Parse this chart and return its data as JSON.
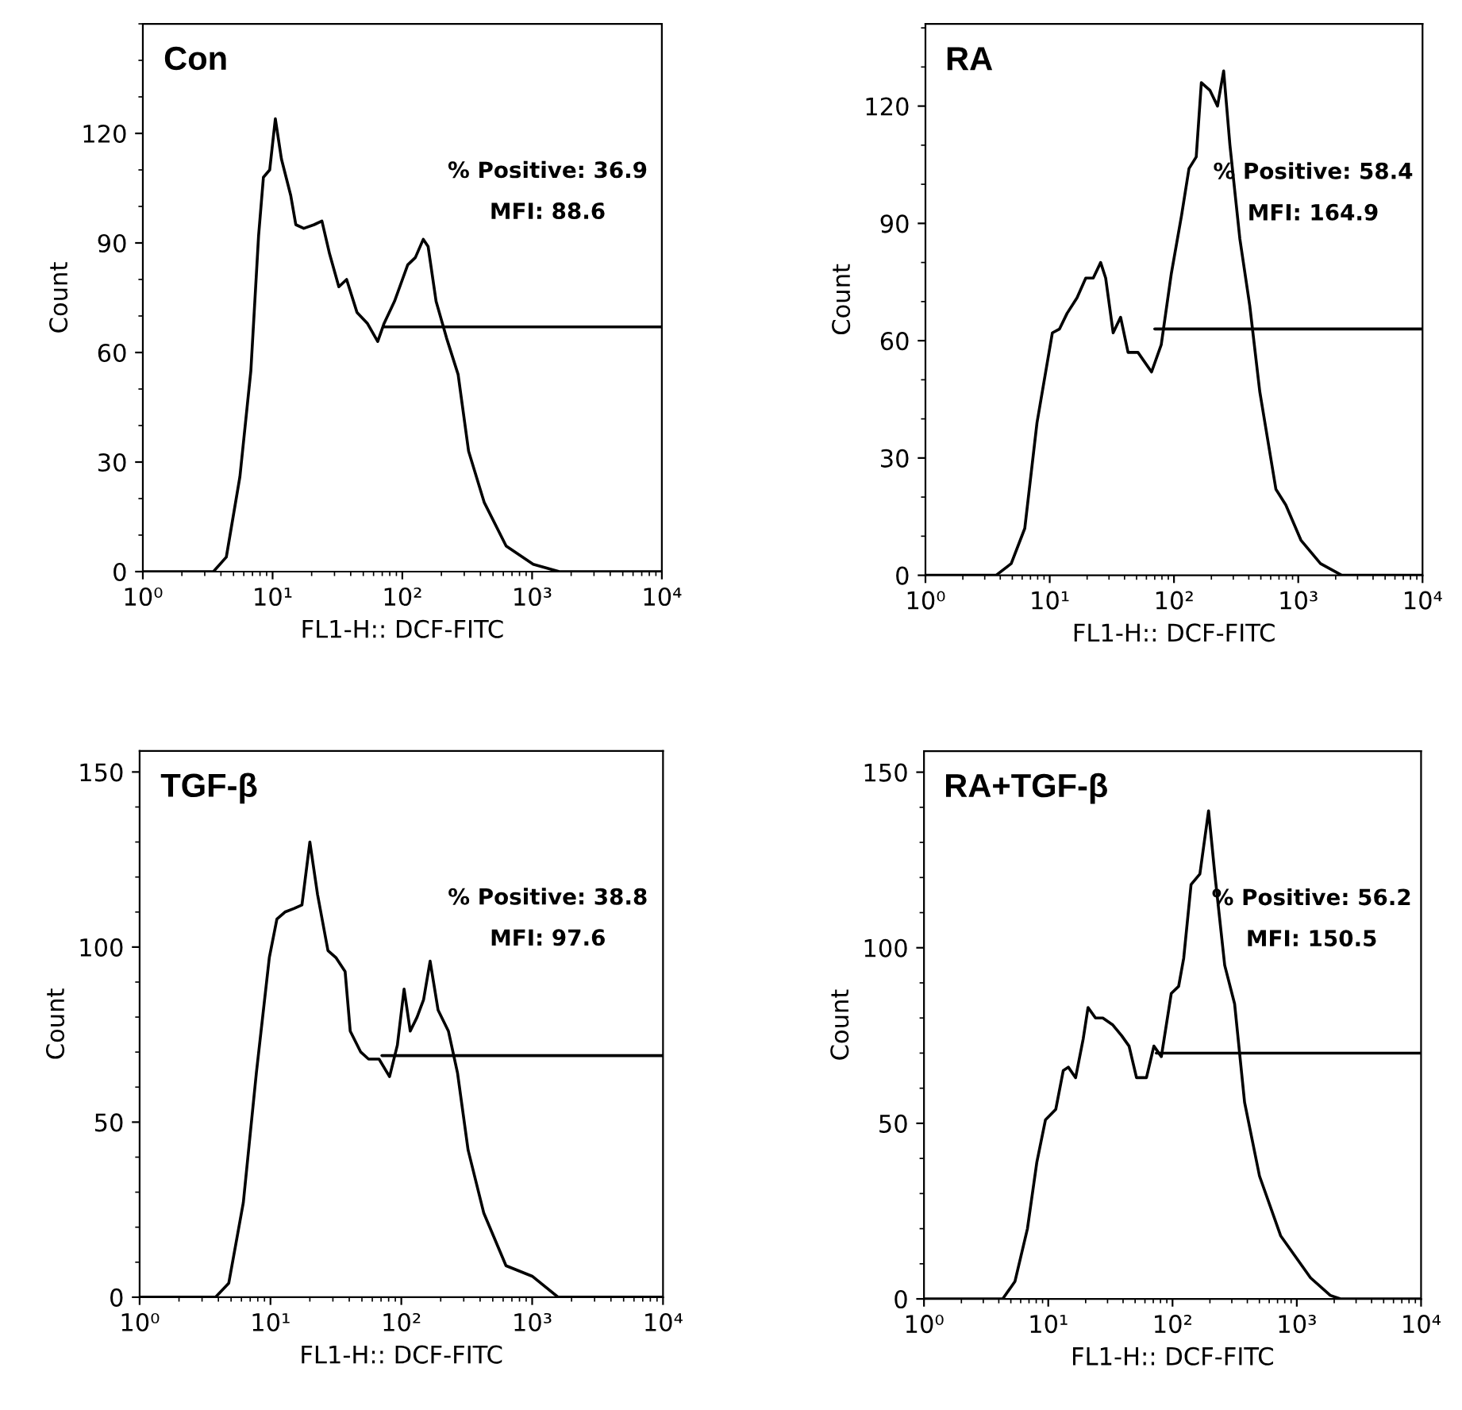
{
  "chart_data": [
    {
      "type": "line",
      "title": "Con",
      "xlabel": "FL1-H:: DCF-FITC",
      "ylabel": "Count",
      "log": "x",
      "grid": false,
      "xlim": [
        1,
        10000
      ],
      "ylim": [
        0,
        150
      ],
      "xticks": [
        {
          "value": 1,
          "label": "10⁰"
        },
        {
          "value": 10,
          "label": "10¹"
        },
        {
          "value": 100,
          "label": "10²"
        },
        {
          "value": 1000,
          "label": "10³"
        },
        {
          "value": 10000,
          "label": "10⁴"
        }
      ],
      "yticks": [
        0,
        30,
        60,
        90,
        120
      ],
      "annotations": [
        "% Positive: 36.9",
        "MFI: 88.6"
      ],
      "series": [
        {
          "color": "#000000",
          "x": [
            1,
            3.5,
            4.4,
            5.6,
            6.8,
            7.8,
            8.5,
            9.5,
            10.5,
            11.7,
            13.8,
            15.1,
            17.4,
            20.9,
            24,
            27.5,
            32.4,
            37.2,
            44.7,
            53.7,
            64.6,
            72.4,
            87,
            110,
            126,
            145,
            158,
            182,
            219,
            269,
            324,
            427,
            631,
            1020,
            1620,
            10000
          ],
          "values": [
            0,
            0,
            4,
            26,
            55,
            92,
            108,
            110,
            124,
            113,
            103,
            95,
            94,
            95,
            96,
            87,
            78,
            80,
            71,
            68,
            63,
            68,
            74,
            84,
            86,
            91,
            89,
            74,
            64,
            54,
            33,
            19,
            7,
            2,
            0,
            0
          ]
        },
        {
          "color": "#000000",
          "x": [
            72,
            10000
          ],
          "values": [
            67,
            67
          ]
        }
      ]
    },
    {
      "type": "line",
      "title": "RA",
      "xlabel": "FL1-H:: DCF-FITC",
      "ylabel": "Count",
      "log": "x",
      "grid": false,
      "xlim": [
        1,
        10000
      ],
      "ylim": [
        0,
        141
      ],
      "xticks": [
        {
          "value": 1,
          "label": "10⁰"
        },
        {
          "value": 10,
          "label": "10¹"
        },
        {
          "value": 100,
          "label": "10²"
        },
        {
          "value": 1000,
          "label": "10³"
        },
        {
          "value": 10000,
          "label": "10⁴"
        }
      ],
      "yticks": [
        0,
        30,
        60,
        90,
        120
      ],
      "annotations": [
        "% Positive: 58.4",
        "MFI: 164.9"
      ],
      "series": [
        {
          "color": "#000000",
          "x": [
            1,
            3.7,
            4.9,
            6.3,
            7.9,
            10.5,
            12,
            13.8,
            16.6,
            19.5,
            22.4,
            25.7,
            28.2,
            32.4,
            37.2,
            42.7,
            51.3,
            66,
            79,
            95,
            115,
            132,
            151,
            166,
            195,
            224,
            251,
            282,
            339,
            407,
            490,
            661,
            794,
            1050,
            1510,
            2240,
            10000
          ],
          "values": [
            0,
            0,
            3,
            12,
            39,
            62,
            63,
            67,
            71,
            76,
            76,
            80,
            76,
            62,
            66,
            57,
            57,
            52,
            59,
            77,
            92,
            104,
            107,
            126,
            124,
            120,
            129,
            110,
            86,
            69,
            47,
            22,
            18,
            9,
            3,
            0,
            0
          ]
        },
        {
          "color": "#000000",
          "x": [
            70,
            10000
          ],
          "values": [
            63,
            63
          ]
        }
      ]
    },
    {
      "type": "line",
      "title": "TGF-β",
      "xlabel": "FL1-H:: DCF-FITC",
      "ylabel": "Count",
      "log": "x",
      "grid": false,
      "xlim": [
        1,
        10000
      ],
      "ylim": [
        0,
        156
      ],
      "xticks": [
        {
          "value": 1,
          "label": "10⁰"
        },
        {
          "value": 10,
          "label": "10¹"
        },
        {
          "value": 100,
          "label": "10²"
        },
        {
          "value": 1000,
          "label": "10³"
        },
        {
          "value": 10000,
          "label": "10⁴"
        }
      ],
      "yticks": [
        0,
        50,
        100,
        150
      ],
      "annotations": [
        "% Positive: 38.8",
        "MFI: 97.6"
      ],
      "series": [
        {
          "color": "#000000",
          "x": [
            1,
            3.8,
            4.8,
            6.2,
            7.8,
            9.8,
            11.2,
            12.9,
            15.1,
            17.4,
            20,
            22.9,
            27.5,
            31.6,
            37.2,
            40.7,
            49,
            56.2,
            67.6,
            81.3,
            93.3,
            105,
            117,
            132,
            148,
            166,
            191,
            229,
            269,
            324,
            427,
            631,
            1000,
            1580,
            10000
          ],
          "values": [
            0,
            0,
            4,
            27,
            64,
            97,
            108,
            110,
            111,
            112,
            130,
            115,
            99,
            97,
            93,
            76,
            70,
            68,
            68,
            63,
            72,
            88,
            76,
            80,
            85,
            96,
            82,
            76,
            64,
            42,
            24,
            9,
            6,
            0,
            0
          ]
        },
        {
          "color": "#000000",
          "x": [
            71,
            10000
          ],
          "values": [
            69,
            69
          ]
        }
      ]
    },
    {
      "type": "line",
      "title": "RA+TGF-β",
      "xlabel": "FL1-H:: DCF-FITC",
      "ylabel": "Count",
      "log": "x",
      "grid": false,
      "xlim": [
        1,
        10000
      ],
      "ylim": [
        0,
        156
      ],
      "xticks": [
        {
          "value": 1,
          "label": "10⁰"
        },
        {
          "value": 10,
          "label": "10¹"
        },
        {
          "value": 100,
          "label": "10²"
        },
        {
          "value": 1000,
          "label": "10³"
        },
        {
          "value": 10000,
          "label": "10⁴"
        }
      ],
      "yticks": [
        0,
        50,
        100,
        150
      ],
      "annotations": [
        "% Positive: 56.2",
        "MFI: 150.5"
      ],
      "series": [
        {
          "color": "#000000",
          "x": [
            1,
            4.3,
            5.4,
            6.8,
            8.1,
            9.5,
            11.5,
            13.2,
            14.5,
            16.6,
            19.1,
            20.9,
            24,
            27.5,
            33.1,
            38.9,
            44.7,
            51.3,
            61.7,
            70.8,
            81.3,
            97.7,
            112,
            123,
            141,
            166,
            195,
            219,
            263,
            316,
            380,
            501,
            741,
            1290,
            1860,
            2240,
            10000
          ],
          "values": [
            0,
            0,
            5,
            20,
            39,
            51,
            54,
            65,
            66,
            63,
            74,
            83,
            80,
            80,
            78,
            75,
            72,
            63,
            63,
            72,
            69,
            87,
            89,
            97,
            118,
            121,
            139,
            121,
            95,
            84,
            56,
            35,
            18,
            6,
            1,
            0,
            0
          ]
        },
        {
          "color": "#000000",
          "x": [
            74,
            10000
          ],
          "values": [
            70,
            70
          ]
        }
      ]
    }
  ]
}
